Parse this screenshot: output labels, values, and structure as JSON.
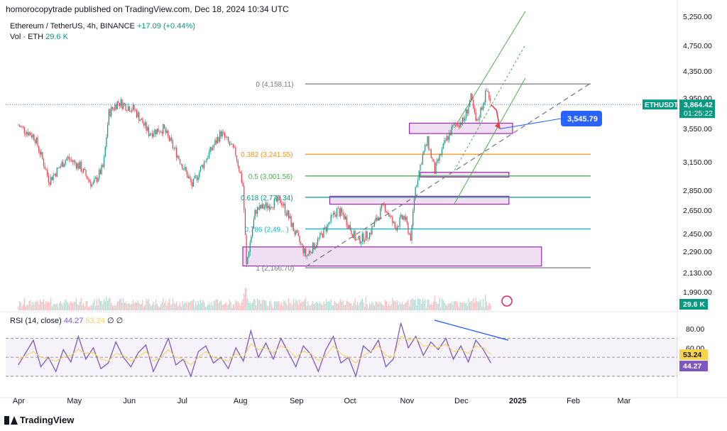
{
  "header": {
    "publisher": "homorocopytrade published on TradingView.com, Dec 18, 2024 10:34 UTC",
    "symbol_line": "Ethereum / TetherUS, 4h, BINANCE",
    "change": "+17.09 (+0.44%)",
    "volume_label": "Vol · ETH",
    "volume_value": "29.6 K"
  },
  "rsi_legend": {
    "label": "RSI (14, close)",
    "value": "44.27",
    "ma_value": "53.24",
    "extra": "∅ ∅"
  },
  "price_tags": {
    "symbol": "ETHUSDT",
    "price": "3,864.42",
    "timer": "01:25:22",
    "target": "3,545.79",
    "volume": "29.6 K",
    "rsi_ma": "53.24",
    "rsi": "44.27"
  },
  "footer": {
    "brand": "TradingView"
  },
  "chart_data": [
    {
      "type": "candlestick",
      "title": "Ethereum / TetherUS, 4h, BINANCE",
      "x_ticks": [
        "Apr",
        "May",
        "Jun",
        "Jul",
        "Aug",
        "Sep",
        "Oct",
        "Nov",
        "Dec",
        "2025",
        "Feb",
        "Mar"
      ],
      "y_ticks": [
        "5,250.00",
        "4,750.00",
        "4,350.00",
        "3,950.00",
        "3,550.00",
        "3,150.00",
        "2,850.00",
        "2,650.00",
        "2,450.00",
        "2,290.00",
        "2,130.00",
        "1,990.00"
      ],
      "price_path": [
        {
          "date": "2024-04-01",
          "price": 3590
        },
        {
          "date": "2024-04-10",
          "price": 3450
        },
        {
          "date": "2024-04-18",
          "price": 2950
        },
        {
          "date": "2024-04-28",
          "price": 3200
        },
        {
          "date": "2024-05-05",
          "price": 3100
        },
        {
          "date": "2024-05-12",
          "price": 2900
        },
        {
          "date": "2024-05-18",
          "price": 3100
        },
        {
          "date": "2024-05-21",
          "price": 3750
        },
        {
          "date": "2024-05-26",
          "price": 3900
        },
        {
          "date": "2024-06-04",
          "price": 3800
        },
        {
          "date": "2024-06-12",
          "price": 3500
        },
        {
          "date": "2024-06-20",
          "price": 3550
        },
        {
          "date": "2024-06-25",
          "price": 3350
        },
        {
          "date": "2024-07-01",
          "price": 3100
        },
        {
          "date": "2024-07-06",
          "price": 2900
        },
        {
          "date": "2024-07-14",
          "price": 3200
        },
        {
          "date": "2024-07-22",
          "price": 3500
        },
        {
          "date": "2024-07-30",
          "price": 3250
        },
        {
          "date": "2024-08-03",
          "price": 2900
        },
        {
          "date": "2024-08-05",
          "price": 2180
        },
        {
          "date": "2024-08-10",
          "price": 2650
        },
        {
          "date": "2024-08-24",
          "price": 2750
        },
        {
          "date": "2024-09-01",
          "price": 2450
        },
        {
          "date": "2024-09-07",
          "price": 2250
        },
        {
          "date": "2024-09-14",
          "price": 2400
        },
        {
          "date": "2024-09-24",
          "price": 2650
        },
        {
          "date": "2024-09-28",
          "price": 2600
        },
        {
          "date": "2024-10-05",
          "price": 2380
        },
        {
          "date": "2024-10-12",
          "price": 2450
        },
        {
          "date": "2024-10-20",
          "price": 2700
        },
        {
          "date": "2024-10-26",
          "price": 2500
        },
        {
          "date": "2024-10-31",
          "price": 2600
        },
        {
          "date": "2024-11-04",
          "price": 2400
        },
        {
          "date": "2024-11-06",
          "price": 2850
        },
        {
          "date": "2024-11-10",
          "price": 3200
        },
        {
          "date": "2024-11-13",
          "price": 3400
        },
        {
          "date": "2024-11-17",
          "price": 3050
        },
        {
          "date": "2024-11-23",
          "price": 3400
        },
        {
          "date": "2024-11-28",
          "price": 3600
        },
        {
          "date": "2024-12-03",
          "price": 3650
        },
        {
          "date": "2024-12-07",
          "price": 3950
        },
        {
          "date": "2024-12-10",
          "price": 3600
        },
        {
          "date": "2024-12-16",
          "price": 4080
        },
        {
          "date": "2024-12-18",
          "price": 3864
        }
      ],
      "fib_levels": [
        {
          "label": "0 (4,158.11)",
          "value": 4158.11,
          "color": "#787b86"
        },
        {
          "label": "0.382 (3,241.55)",
          "value": 3241.55,
          "color": "#f7931a"
        },
        {
          "label": "0.5 (3,001.56)",
          "value": 3001.56,
          "color": "#4caf50"
        },
        {
          "label": "0.618 (2,779.34)",
          "value": 2779.34,
          "color": "#089981"
        },
        {
          "label": "0.786 (2,49...)",
          "value": 2490,
          "color": "#00bcd4"
        },
        {
          "label": "1 (2,166.70)",
          "value": 2166.7,
          "color": "#787b86"
        }
      ],
      "zones": [
        {
          "from": "2024-08-03",
          "to": "2025-01-15",
          "low": 2180,
          "high": 2330
        },
        {
          "from": "2024-09-20",
          "to": "2024-12-28",
          "low": 2710,
          "high": 2790
        },
        {
          "from": "2024-11-09",
          "to": "2024-12-28",
          "low": 2990,
          "high": 3040
        },
        {
          "from": "2024-11-03",
          "to": "2024-12-30",
          "low": 3490,
          "high": 3620
        }
      ],
      "projection": [
        {
          "date": "2024-12-18",
          "price": 3864
        },
        {
          "date": "2024-12-23",
          "price": 3545.79
        }
      ],
      "target_label": "3,545.79",
      "current_price": 3864.42
    },
    {
      "type": "line",
      "title": "RSI (14, close)",
      "y_ticks": [
        "80.00",
        "60.00"
      ],
      "levels": [
        70,
        50,
        30
      ],
      "series": [
        {
          "name": "RSI",
          "color": "#7e57c2",
          "values": [
            42,
            55,
            68,
            40,
            50,
            35,
            58,
            45,
            72,
            48,
            60,
            38,
            44,
            66,
            50,
            40,
            55,
            63,
            35,
            52,
            70,
            42,
            48,
            30,
            56,
            62,
            44,
            50,
            38,
            60,
            46,
            78,
            50,
            65,
            48,
            70,
            55,
            40,
            62,
            53,
            35,
            58,
            72,
            44,
            50,
            30,
            62,
            55,
            68,
            40,
            48,
            86,
            60,
            72,
            52,
            66,
            58,
            70,
            48,
            62,
            45,
            68,
            58,
            44
          ]
        },
        {
          "name": "MA",
          "color": "#f9d34c",
          "values": [
            48,
            52,
            56,
            50,
            48,
            46,
            50,
            52,
            58,
            54,
            55,
            48,
            46,
            54,
            52,
            46,
            50,
            56,
            46,
            50,
            58,
            50,
            48,
            42,
            50,
            56,
            50,
            48,
            46,
            54,
            50,
            64,
            58,
            60,
            54,
            62,
            58,
            50,
            56,
            54,
            46,
            52,
            62,
            54,
            50,
            44,
            52,
            56,
            62,
            52,
            50,
            72,
            68,
            70,
            62,
            62,
            60,
            64,
            56,
            58,
            54,
            62,
            60,
            53
          ]
        }
      ],
      "divergence": {
        "start": 89,
        "end": 68
      }
    }
  ]
}
